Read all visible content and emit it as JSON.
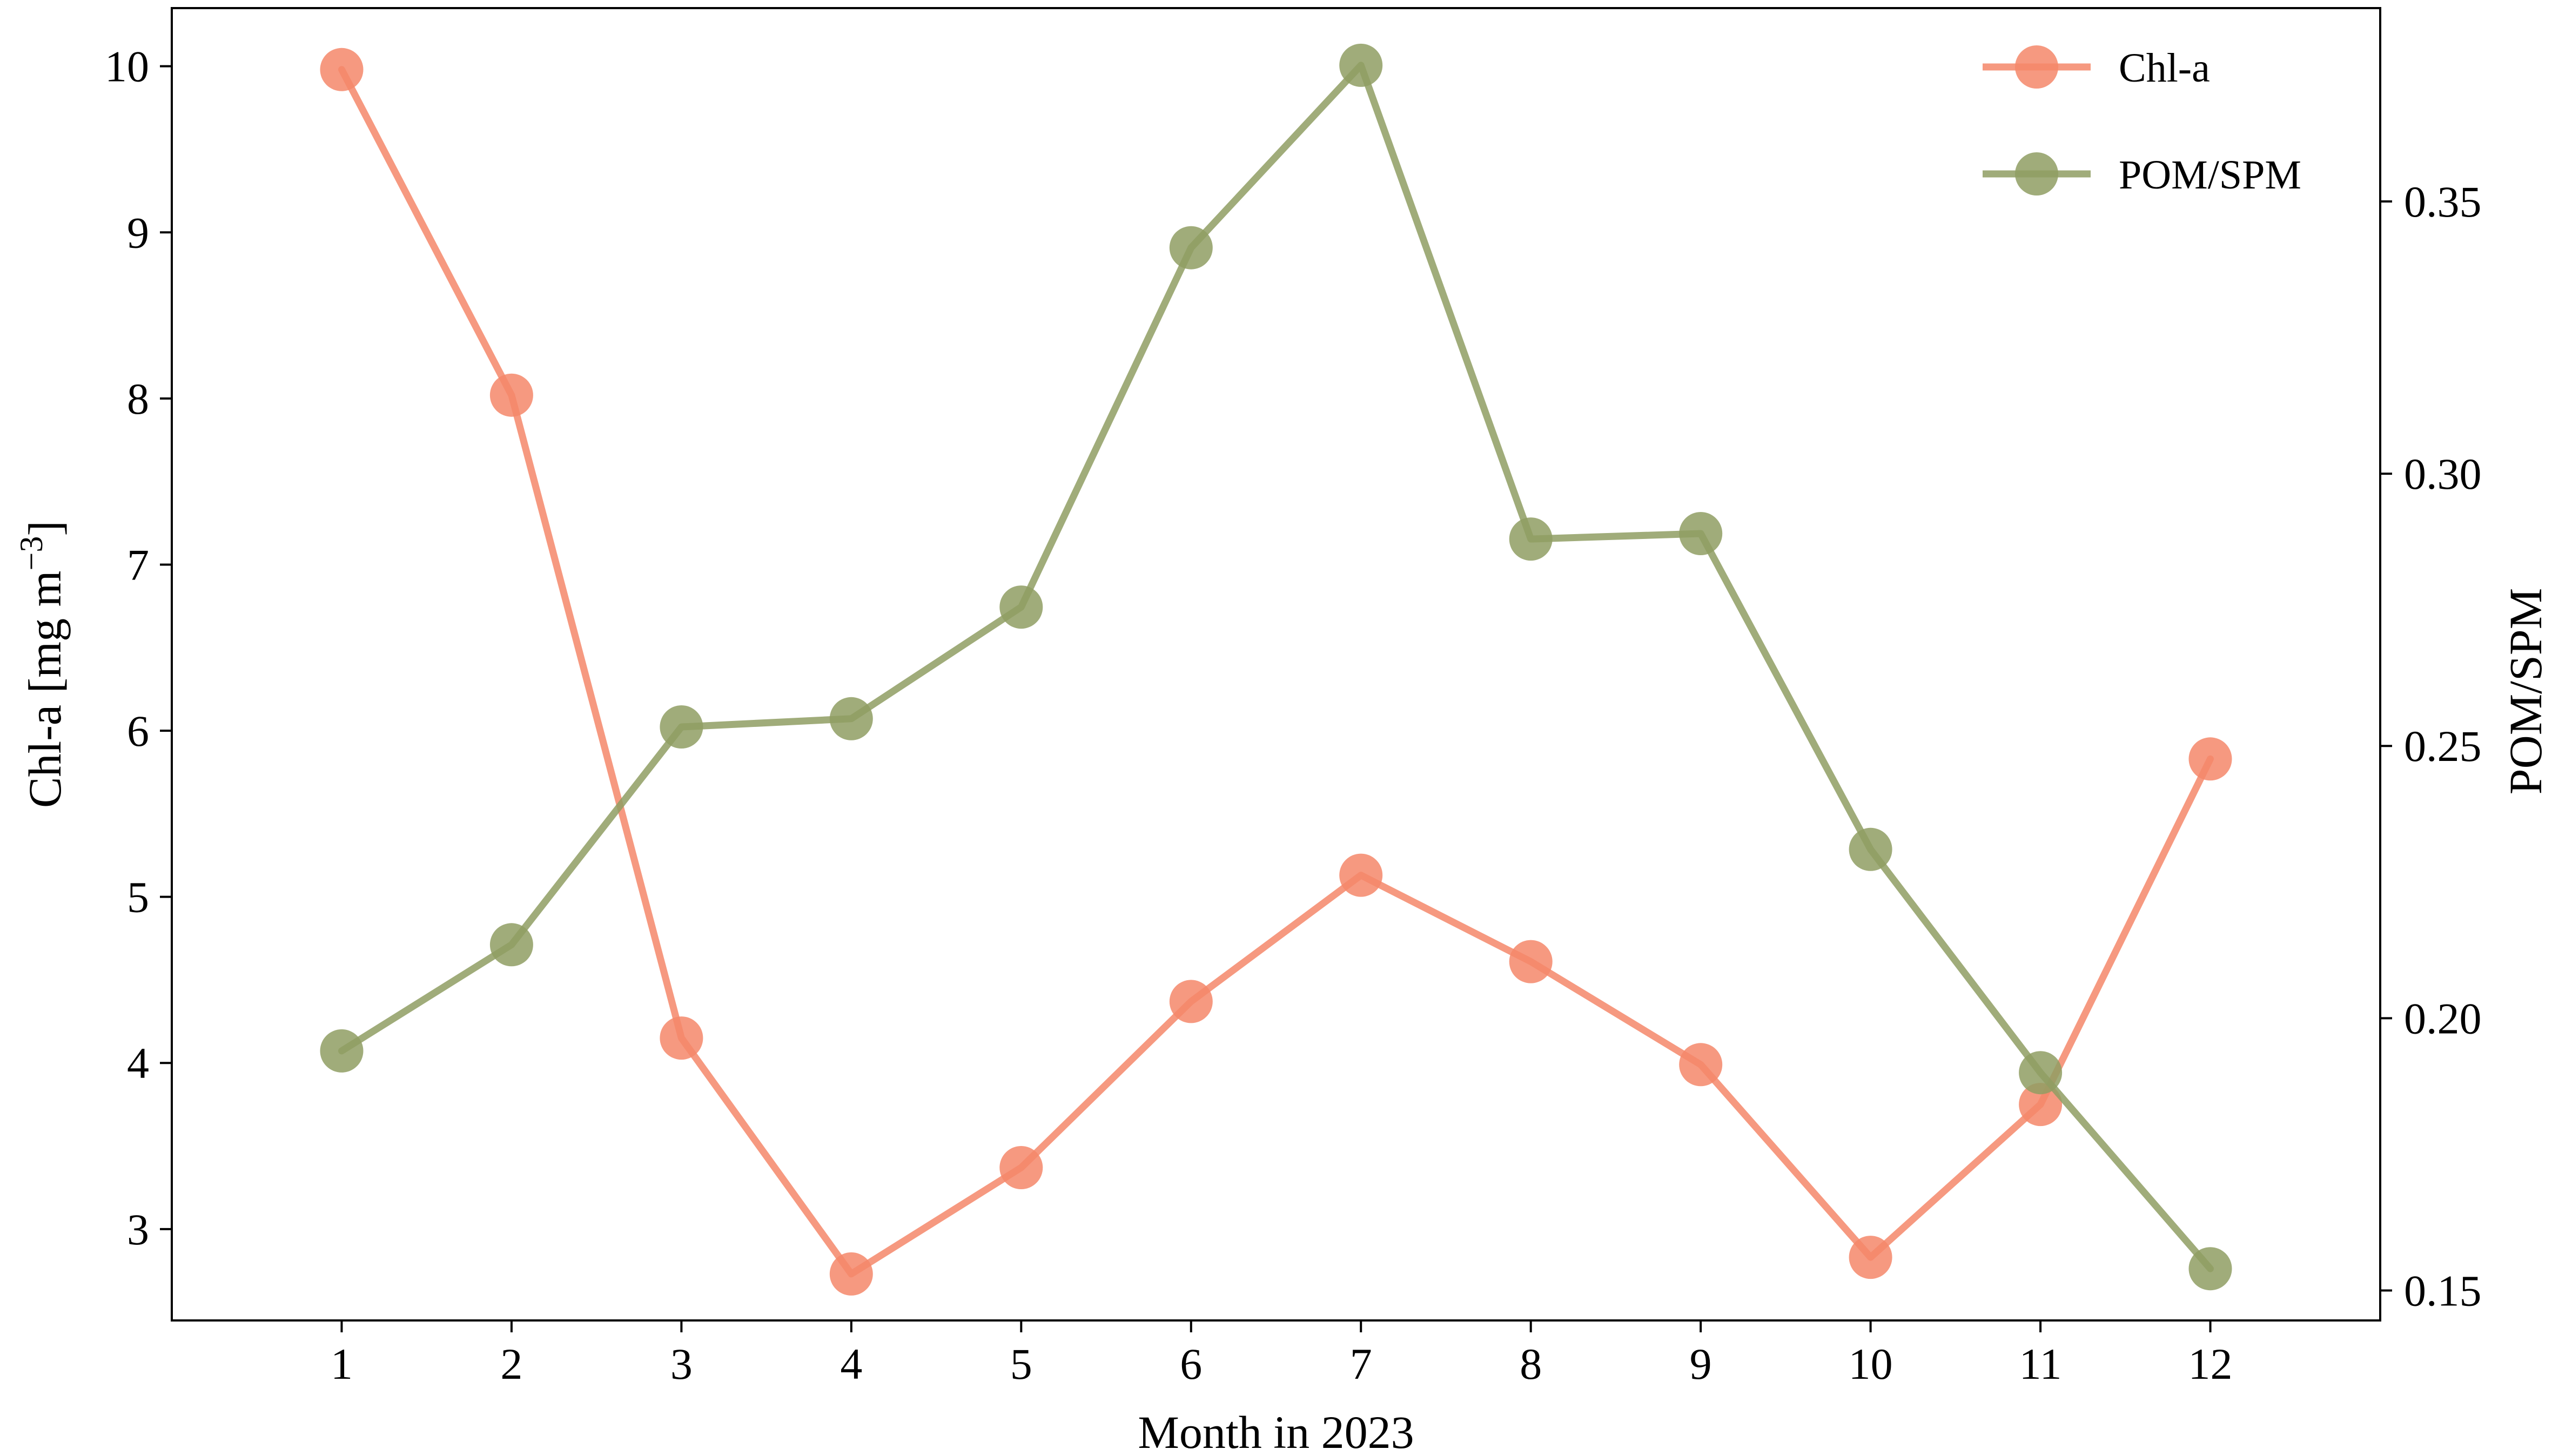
{
  "chart_data": {
    "type": "line",
    "xlabel": "Month in 2023",
    "x": [
      1,
      2,
      3,
      4,
      5,
      6,
      7,
      8,
      9,
      10,
      11,
      12
    ],
    "xlim": [
      0,
      13
    ],
    "y_left": {
      "label": "Chl-a [mg m",
      "label_superscript": "−3",
      "label_close": "]",
      "lim": [
        2.45,
        10.35
      ],
      "ticks": [
        3,
        4,
        5,
        6,
        7,
        8,
        9,
        10
      ]
    },
    "y_right": {
      "label": "POM/SPM",
      "lim": [
        0.1445,
        0.3855
      ],
      "ticks": [
        0.15,
        0.2,
        0.25,
        0.3,
        0.35
      ],
      "tick_labels": [
        "0.15",
        "0.20",
        "0.25",
        "0.30",
        "0.35"
      ]
    },
    "series": [
      {
        "name": "Chl-a",
        "axis": "left",
        "color": "#f4876a",
        "values": [
          9.98,
          8.02,
          4.15,
          2.73,
          3.37,
          4.37,
          5.13,
          4.61,
          3.99,
          2.83,
          3.75,
          5.83
        ]
      },
      {
        "name": "POM/SPM",
        "axis": "right",
        "color": "#8f9e63",
        "values": [
          0.194,
          0.2135,
          0.2535,
          0.255,
          0.2755,
          0.3415,
          0.375,
          0.288,
          0.289,
          0.231,
          0.19,
          0.154
        ]
      }
    ],
    "grid": false,
    "legend_position": "top-right"
  }
}
